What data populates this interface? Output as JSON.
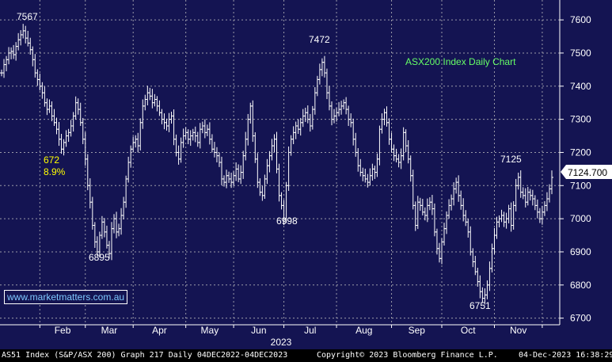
{
  "chart_data": {
    "type": "bar",
    "style": "OHLC bars (daily)",
    "title": "ASX200 Index Daily Chart",
    "ylim": [
      6680,
      7660
    ],
    "y_ticks": [
      "7600",
      "7500",
      "7400",
      "7300",
      "7200",
      "7100",
      "7000",
      "6900",
      "6800",
      "6700"
    ],
    "x_tick_labels": [
      "Feb",
      "Mar",
      "Apr",
      "May",
      "Jun",
      "Jul",
      "Aug",
      "Sep",
      "Oct",
      "Nov"
    ],
    "year_label": "2023",
    "last_price": "7124.700",
    "grid": true,
    "series": [
      {
        "closes": [
          7440,
          7465,
          7480,
          7500,
          7505,
          7495,
          7520,
          7540,
          7555,
          7567,
          7545,
          7530,
          7510,
          7480,
          7440,
          7420,
          7400,
          7380,
          7350,
          7330,
          7340,
          7310,
          7290,
          7270,
          7240,
          7210,
          7230,
          7250,
          7260,
          7280,
          7310,
          7350,
          7330,
          7290,
          7240,
          7180,
          7100,
          7050,
          6980,
          6930,
          6900,
          6950,
          6990,
          6960,
          6920,
          6895,
          6970,
          7000,
          6960,
          6970,
          7010,
          7050,
          7120,
          7170,
          7210,
          7230,
          7240,
          7220,
          7290,
          7340,
          7360,
          7380,
          7370,
          7350,
          7360,
          7340,
          7320,
          7300,
          7290,
          7280,
          7300,
          7310,
          7240,
          7200,
          7180,
          7230,
          7250,
          7260,
          7240,
          7250,
          7260,
          7250,
          7230,
          7270,
          7280,
          7260,
          7270,
          7240,
          7210,
          7200,
          7190,
          7170,
          7120,
          7110,
          7130,
          7120,
          7110,
          7130,
          7150,
          7120,
          7140,
          7190,
          7240,
          7300,
          7340,
          7250,
          7180,
          7110,
          7080,
          7070,
          7120,
          7160,
          7190,
          7220,
          7240,
          7150,
          7070,
          7040,
          6998,
          7100,
          7200,
          7240,
          7260,
          7280,
          7270,
          7290,
          7310,
          7320,
          7300,
          7280,
          7330,
          7380,
          7420,
          7450,
          7472,
          7440,
          7380,
          7340,
          7300,
          7310,
          7320,
          7330,
          7340,
          7350,
          7330,
          7300,
          7290,
          7240,
          7200,
          7160,
          7140,
          7130,
          7120,
          7110,
          7130,
          7150,
          7140,
          7180,
          7270,
          7300,
          7320,
          7290,
          7240,
          7210,
          7190,
          7180,
          7170,
          7190,
          7260,
          7220,
          7180,
          7130,
          7040,
          6980,
          7050,
          7040,
          7020,
          7010,
          7040,
          7050,
          7030,
          6960,
          6910,
          6880,
          6930,
          6970,
          7010,
          7040,
          7060,
          7090,
          7110,
          7070,
          7040,
          7010,
          6990,
          6960,
          6900,
          6870,
          6840,
          6810,
          6780,
          6760,
          6770,
          6800,
          6850,
          6910,
          6950,
          6990,
          7000,
          7010,
          6990,
          7000,
          7030,
          6980,
          7040,
          7100,
          7125,
          7080,
          7070,
          7050,
          7080,
          7070,
          7060,
          7040,
          7020,
          7000,
          7020,
          7040,
          7060,
          7090,
          7124.7
        ]
      }
    ],
    "annotations": [
      {
        "text": "7567",
        "x_index": 9,
        "value": 7567
      },
      {
        "text": "6895",
        "x_index": 45,
        "value": 6895
      },
      {
        "text": "7472",
        "x_index": 134,
        "value": 7472
      },
      {
        "text": "6998",
        "x_index": 118,
        "value": 6998
      },
      {
        "text": "6751",
        "x_index": 206,
        "value": 6751
      },
      {
        "text": "7125",
        "x_index": 223,
        "value": 7125
      },
      {
        "text": "672",
        "color": "#ffff00"
      },
      {
        "text": "8.9%",
        "color": "#ffff00"
      }
    ],
    "colors": {
      "background": "#141452",
      "grid": "#9a9aa8",
      "bars": "#ffffff",
      "title": "#66ff66",
      "callout": "#ffff00"
    }
  },
  "source_label": "www.marketmatters.com.au",
  "footer": {
    "security": "AS51 Index (S&P/ASX 200) Graph 217  Daily 04DEC2022-04DEC2023",
    "copyright": "Copyright© 2023 Bloomberg Finance L.P.",
    "timestamp": "04-Dec-2023 16:38:29"
  }
}
